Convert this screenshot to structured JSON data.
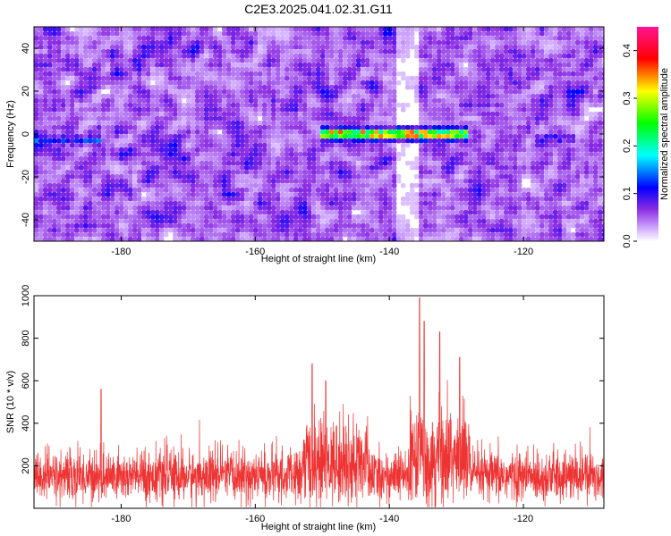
{
  "figure_title": "C2E3.2025.041.02.31.G11",
  "colors": {
    "snr_line": "#ee3333",
    "frame": "#000000",
    "background": "#ffffff"
  },
  "chart_data": [
    {
      "id": "spectrogram",
      "type": "heatmap",
      "title": "C2E3.2025.041.02.31.G11",
      "xlabel": "Height of straight line (km)",
      "ylabel": "Frequency (Hz)",
      "xlim": [
        -193,
        -108
      ],
      "ylim": [
        -50,
        50
      ],
      "xticks": [
        -180,
        -160,
        -140,
        -120
      ],
      "yticks": [
        -40,
        -20,
        0,
        20,
        40
      ],
      "grid": false,
      "colorbar": {
        "label": "Normalized spectral amplitude",
        "range": [
          0,
          0.45
        ],
        "ticks": [
          "0.0",
          "0.1",
          "0.2",
          "0.3",
          "0.4"
        ],
        "colormap": "rainbow-on-white"
      },
      "features": [
        {
          "x_range": [
            -193,
            -183
          ],
          "freq_hz": -3,
          "peak_amplitude": 0.15
        },
        {
          "x_range": [
            -150,
            -128
          ],
          "freq_hz": 0,
          "peak_amplitude": 0.42
        },
        {
          "x_range": [
            -118,
            -112
          ],
          "freq_hz": -2,
          "peak_amplitude": 0.12
        }
      ]
    },
    {
      "id": "snr",
      "type": "line",
      "xlabel": "Height of straight line (km)",
      "ylabel": "SNR (10 * v/v)",
      "xlim": [
        -193,
        -108
      ],
      "ylim": [
        0,
        1000
      ],
      "xticks": [
        -180,
        -160,
        -140,
        -120
      ],
      "yticks": [
        200,
        400,
        600,
        800,
        1000
      ],
      "grid": false,
      "series": [
        {
          "baseline_mean": 150,
          "noise_spread": 60,
          "peaks": [
            {
              "x": -135.5,
              "y": 990
            },
            {
              "x": -134.8,
              "y": 880
            },
            {
              "x": -132.5,
              "y": 830
            },
            {
              "x": -129.5,
              "y": 710
            },
            {
              "x": -151.5,
              "y": 680
            },
            {
              "x": -149.5,
              "y": 600
            },
            {
              "x": -183,
              "y": 560
            }
          ]
        }
      ]
    }
  ]
}
